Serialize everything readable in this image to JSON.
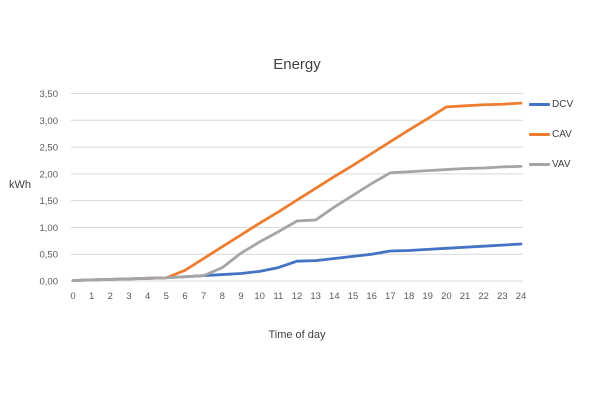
{
  "chart_data": {
    "type": "line",
    "title": "Energy",
    "xlabel": "Time of day",
    "ylabel": "kWh",
    "x": [
      0,
      1,
      2,
      3,
      4,
      5,
      6,
      7,
      8,
      9,
      10,
      11,
      12,
      13,
      14,
      15,
      16,
      17,
      18,
      19,
      20,
      21,
      22,
      23,
      24
    ],
    "x_ticks": [
      0,
      1,
      2,
      3,
      4,
      5,
      6,
      7,
      8,
      9,
      10,
      11,
      12,
      13,
      14,
      15,
      16,
      17,
      18,
      19,
      20,
      21,
      22,
      23,
      24
    ],
    "y_tick_labels": [
      "0,00",
      "0,50",
      "1,00",
      "1,50",
      "2,00",
      "2,50",
      "3,00",
      "3,50"
    ],
    "ylim": [
      0,
      3.5
    ],
    "xlim": [
      0,
      24
    ],
    "grid": "horizontal",
    "legend_position": "right",
    "series": [
      {
        "name": "DCV",
        "color": "#4472C4",
        "values": [
          0.01,
          0.02,
          0.03,
          0.04,
          0.05,
          0.06,
          0.08,
          0.1,
          0.12,
          0.14,
          0.18,
          0.25,
          0.37,
          0.38,
          0.42,
          0.46,
          0.5,
          0.56,
          0.57,
          0.59,
          0.61,
          0.63,
          0.65,
          0.67,
          0.69
        ]
      },
      {
        "name": "CAV",
        "color": "#ED7D31",
        "values": [
          0.01,
          0.02,
          0.03,
          0.04,
          0.05,
          0.06,
          0.2,
          0.42,
          0.64,
          0.86,
          1.08,
          1.29,
          1.51,
          1.73,
          1.95,
          2.16,
          2.38,
          2.6,
          2.82,
          3.03,
          3.25,
          3.27,
          3.29,
          3.3,
          3.32
        ]
      },
      {
        "name": "VAV",
        "color": "#A5A5A5",
        "values": [
          0.01,
          0.02,
          0.03,
          0.04,
          0.05,
          0.06,
          0.08,
          0.1,
          0.25,
          0.52,
          0.73,
          0.92,
          1.12,
          1.14,
          1.38,
          1.6,
          1.82,
          2.02,
          2.04,
          2.06,
          2.08,
          2.1,
          2.11,
          2.13,
          2.14
        ]
      }
    ]
  },
  "colors": {
    "gridline": "#D9D9D9",
    "tick_text": "#595959",
    "title_text": "#404040",
    "background": "#FFFFFF"
  }
}
